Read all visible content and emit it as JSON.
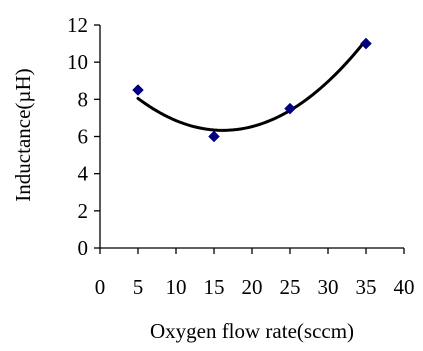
{
  "chart_data": {
    "type": "scatter",
    "xlabel": "Oxygen flow rate(sccm)",
    "ylabel": "Inductance(µH)",
    "xlim": [
      0,
      40
    ],
    "ylim": [
      0,
      12
    ],
    "x_ticks": [
      "0",
      "5",
      "10",
      "15",
      "20",
      "25",
      "30",
      "35",
      "40"
    ],
    "y_ticks": [
      "0",
      "2",
      "4",
      "6",
      "8",
      "10",
      "12"
    ],
    "grid": false,
    "legend": "none",
    "series": [
      {
        "marker": "diamond",
        "color": "#000080",
        "points": [
          {
            "x": 5,
            "y": 8.5
          },
          {
            "x": 15,
            "y": 6.0
          },
          {
            "x": 25,
            "y": 7.5
          },
          {
            "x": 35,
            "y": 11.0
          }
        ]
      }
    ],
    "trendline": {
      "type": "polynomial",
      "color": "#000000",
      "x_range": [
        5,
        35
      ],
      "coefficients": {
        "a": 0.01375,
        "b": -0.445,
        "c": 9.9312
      }
    }
  }
}
